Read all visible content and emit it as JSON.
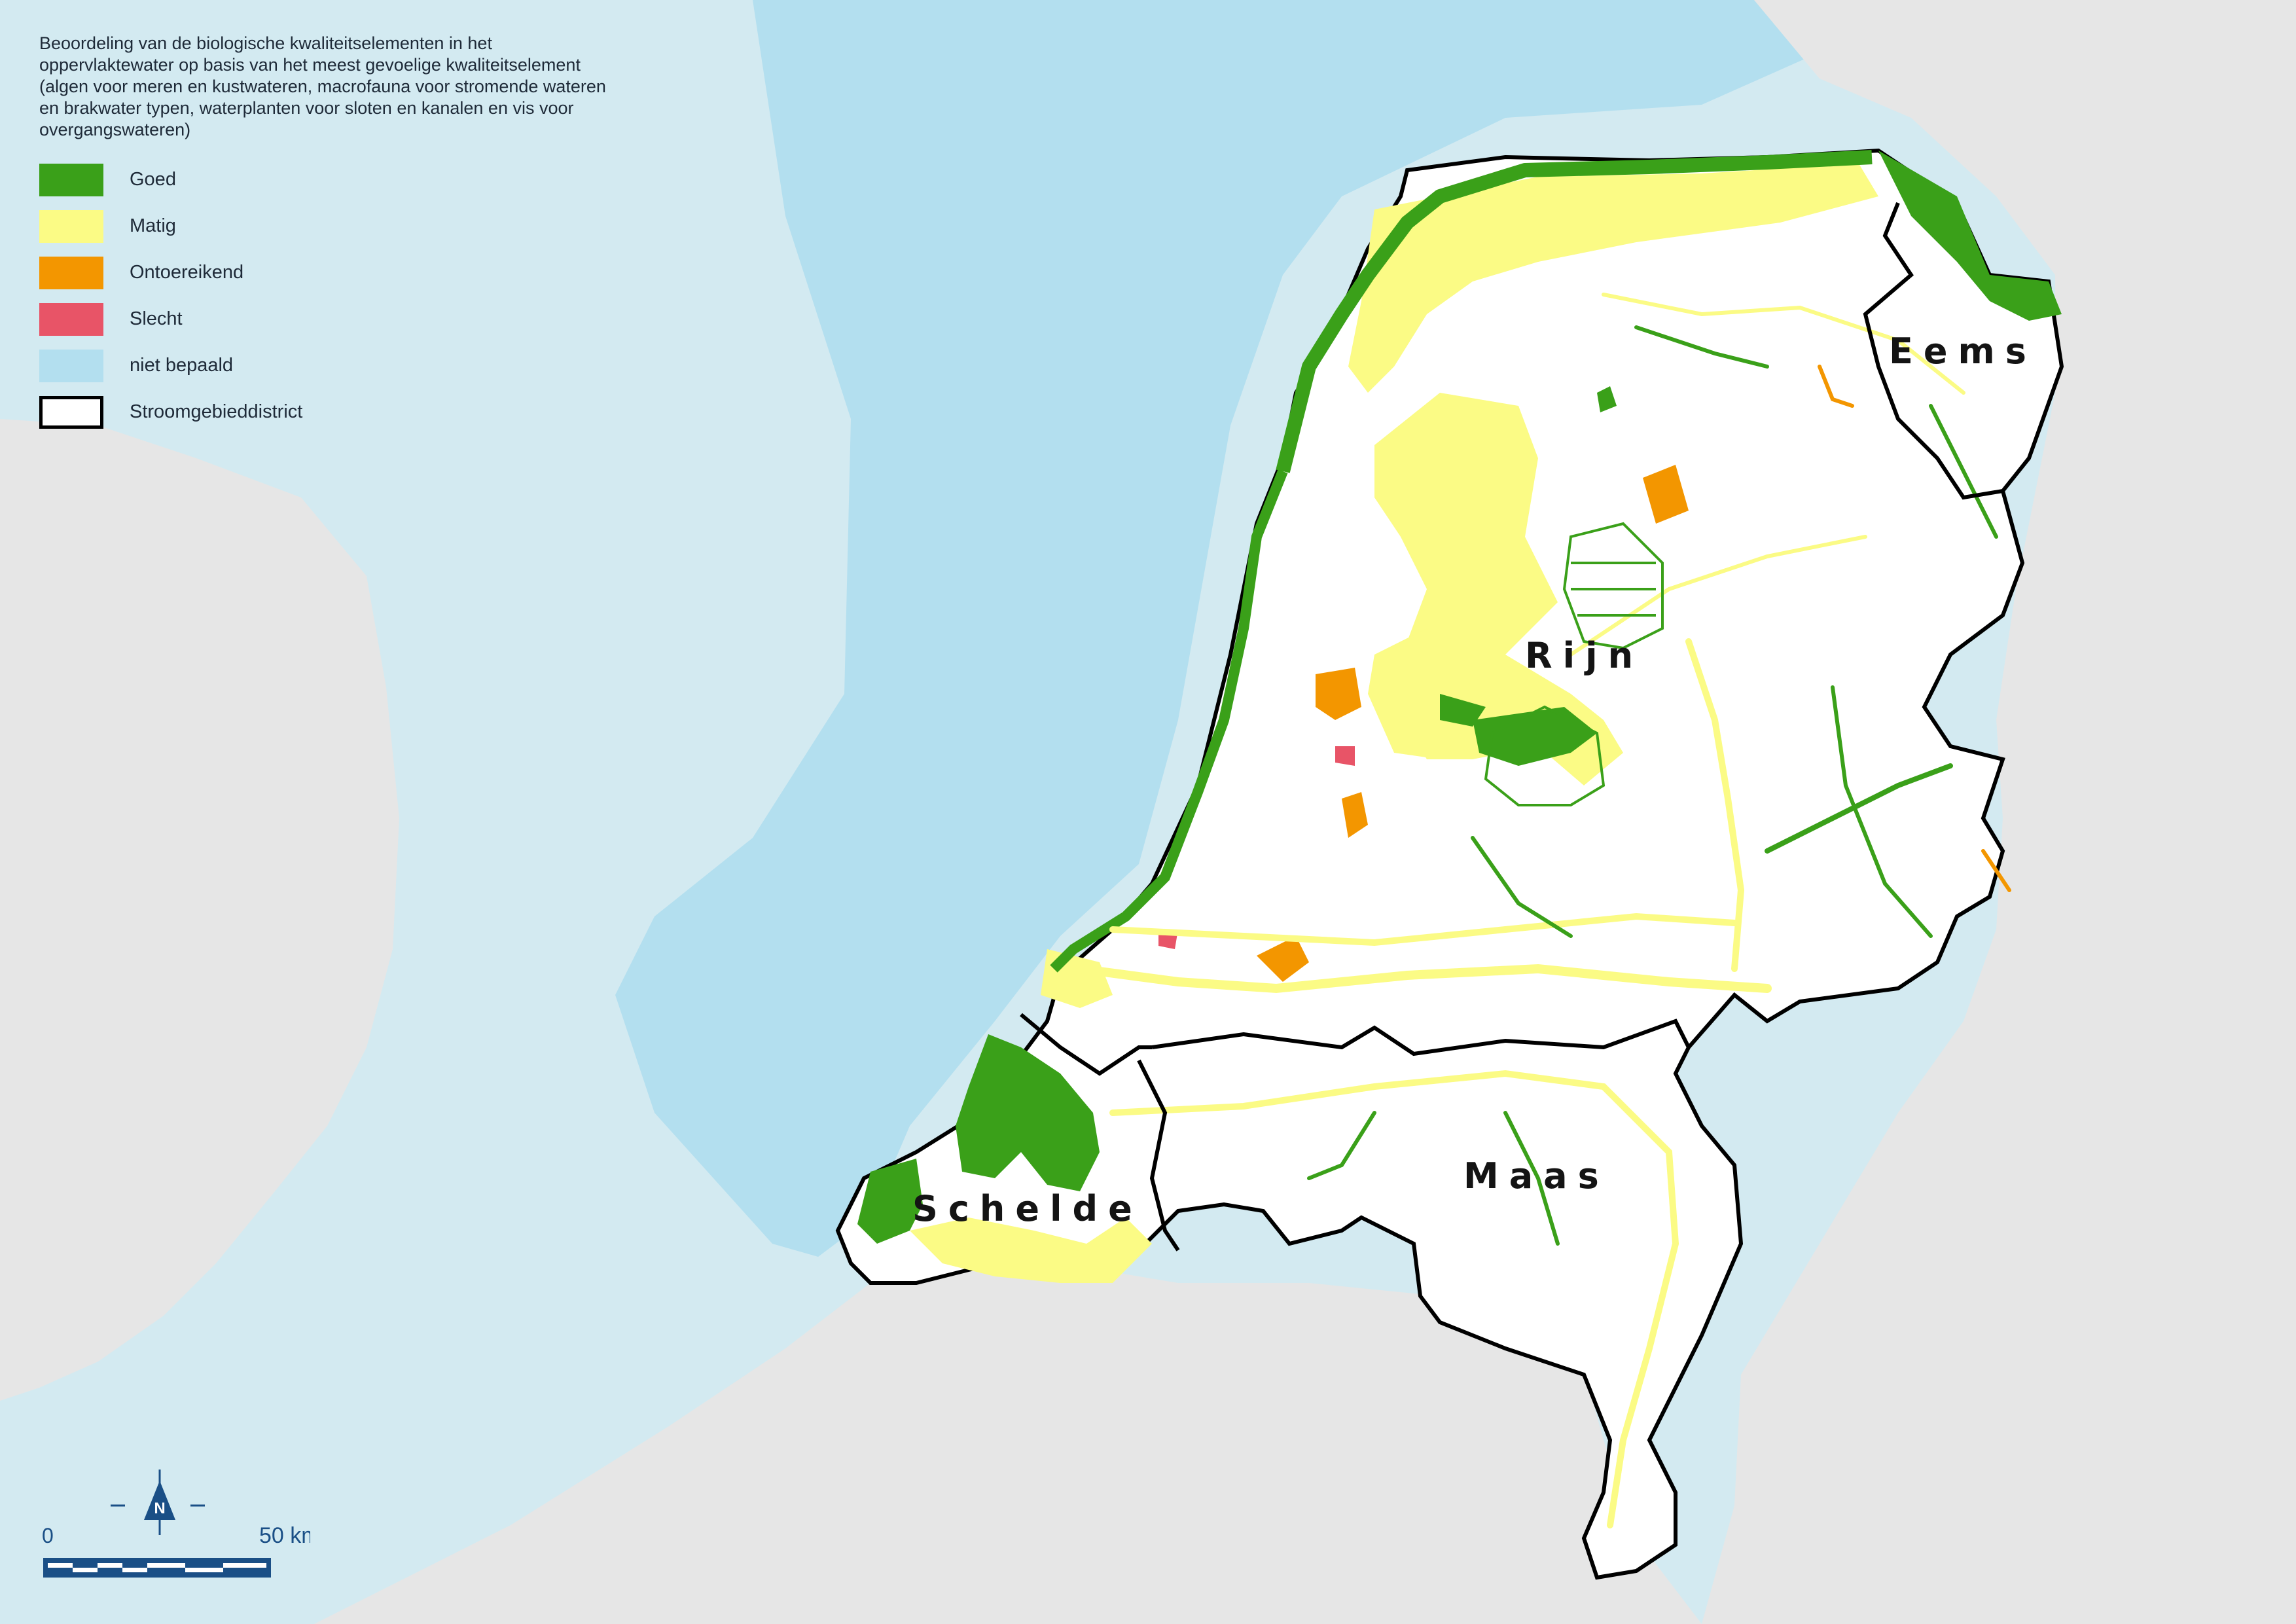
{
  "legend": {
    "title": "Beoordeling van de biologische kwaliteitselementen in het oppervlaktewater op basis van het meest gevoelige kwaliteitselement (algen voor meren en kustwateren, macrofauna voor stromende wateren en brakwater typen, waterplanten voor sloten en kanalen en vis voor overgangswateren)",
    "items": [
      {
        "label": "Goed",
        "color": "#3aa019",
        "border": "none"
      },
      {
        "label": "Matig",
        "color": "#fbfb85",
        "border": "none"
      },
      {
        "label": "Ontoereikend",
        "color": "#f39600",
        "border": "none"
      },
      {
        "label": "Slecht",
        "color": "#e85467",
        "border": "none"
      },
      {
        "label": "niet bepaald",
        "color": "#b3dfef",
        "border": "none"
      },
      {
        "label": "Stroomgebieddistrict",
        "color": "#ffffff",
        "border": "#000000"
      }
    ]
  },
  "districts": {
    "eems": "Eems",
    "rijn": "Rijn",
    "maas": "Maas",
    "schelde": "Schelde"
  },
  "scale_bar": {
    "start_label": "0",
    "end_label": "50 km",
    "north_label": "N"
  },
  "colors": {
    "sea": "#b3dfef",
    "sea_outer": "#d3eaf1",
    "neighbor_land": "#e6e6e6",
    "land": "#ffffff",
    "good": "#3aa019",
    "moderate": "#fbfb85",
    "poor": "#f39600",
    "bad": "#e85467",
    "urban": "#e1e1e1",
    "accent_blue": "#1a4f86"
  }
}
